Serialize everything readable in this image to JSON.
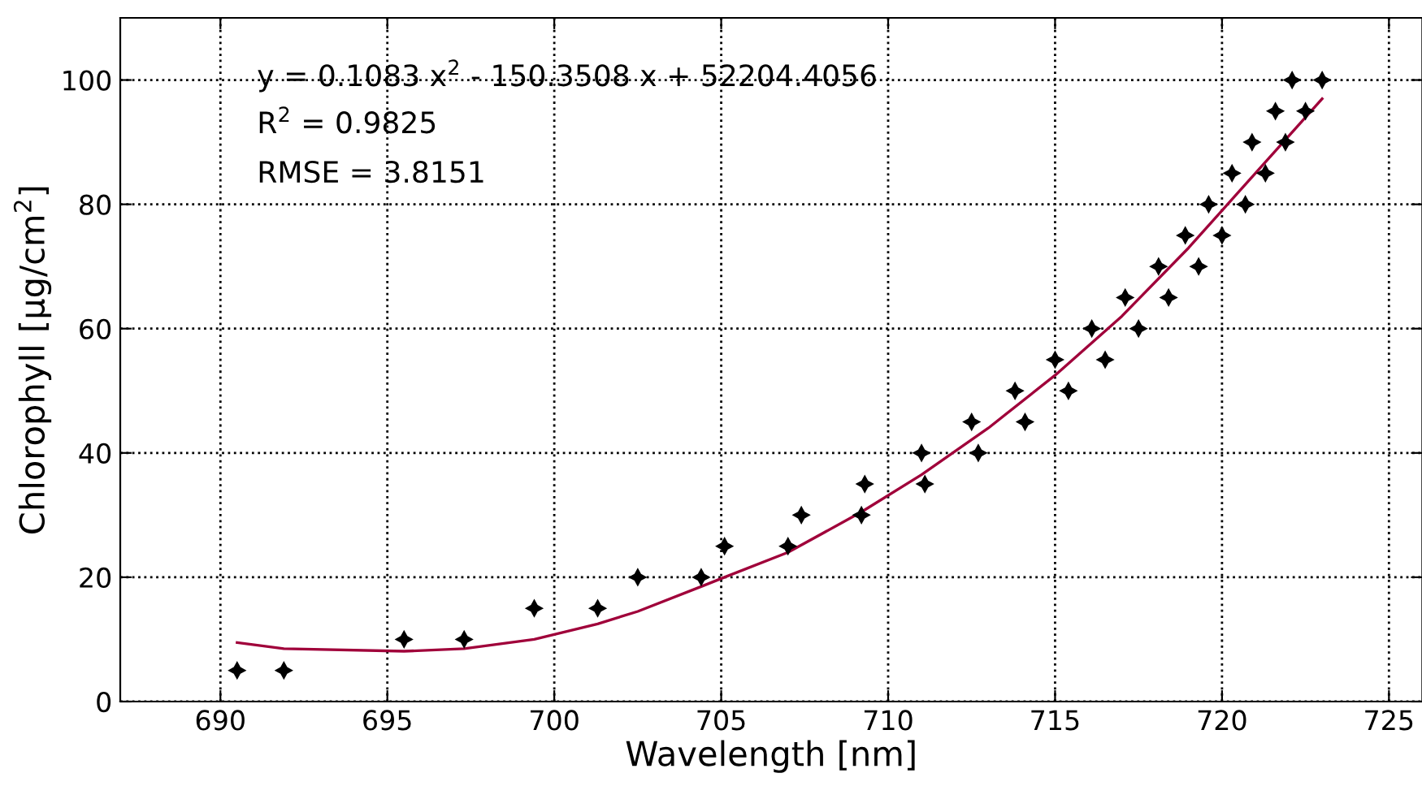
{
  "chart_data": {
    "type": "scatter",
    "xlabel": "Wavelength [nm]",
    "ylabel": "Chlorophyll [μg/cm$^{2}$]",
    "xlim": [
      687,
      726
    ],
    "ylim": [
      0,
      110
    ],
    "xticks": [
      690,
      695,
      700,
      705,
      710,
      715,
      720,
      725
    ],
    "yticks": [
      0,
      20,
      40,
      60,
      80,
      100
    ],
    "grid": true,
    "marker": "star",
    "annotations": [
      "y = 0.1083 x$^{2}$ - 150.3508 x + 52204.4056",
      "R$^{2}$ = 0.9825",
      "RMSE = 3.8151"
    ],
    "series": [
      {
        "color": "#000000",
        "x": [
          690.5,
          691.9,
          695.5,
          697.3,
          699.4,
          701.3,
          702.5,
          704.4,
          705.1,
          707.0,
          707.4,
          709.2,
          709.3,
          711.0,
          711.1,
          712.5,
          712.7,
          713.8,
          714.1,
          715.0,
          715.4,
          716.1,
          716.5,
          717.1,
          717.5,
          718.1,
          718.4,
          718.9,
          719.3,
          719.6,
          720.0,
          720.3,
          720.7,
          720.9,
          721.3,
          721.6,
          721.9,
          722.1,
          722.5,
          723.0
        ],
        "values": [
          5,
          5,
          10,
          10,
          15,
          15,
          20,
          20,
          25,
          25,
          30,
          30,
          35,
          40,
          35,
          45,
          40,
          50,
          45,
          55,
          50,
          60,
          55,
          65,
          60,
          70,
          65,
          75,
          70,
          80,
          75,
          85,
          80,
          90,
          85,
          95,
          90,
          100,
          95,
          100
        ]
      },
      {
        "type": "line",
        "color": "#a0003a",
        "marker": "none",
        "line_style": "solid",
        "x": [
          690.5,
          691.9,
          695.5,
          697.3,
          699.4,
          701.3,
          702.5,
          704.4,
          705.1,
          707.0,
          709.2,
          711.0,
          713.0,
          715.0,
          717.0,
          719.0,
          721.0,
          723.0
        ],
        "values": [
          9.5,
          8.5,
          8.1,
          8.5,
          10.0,
          12.5,
          14.5,
          18.5,
          20,
          24,
          30.5,
          36.5,
          44,
          52.5,
          62,
          73,
          85,
          97
        ]
      }
    ]
  }
}
